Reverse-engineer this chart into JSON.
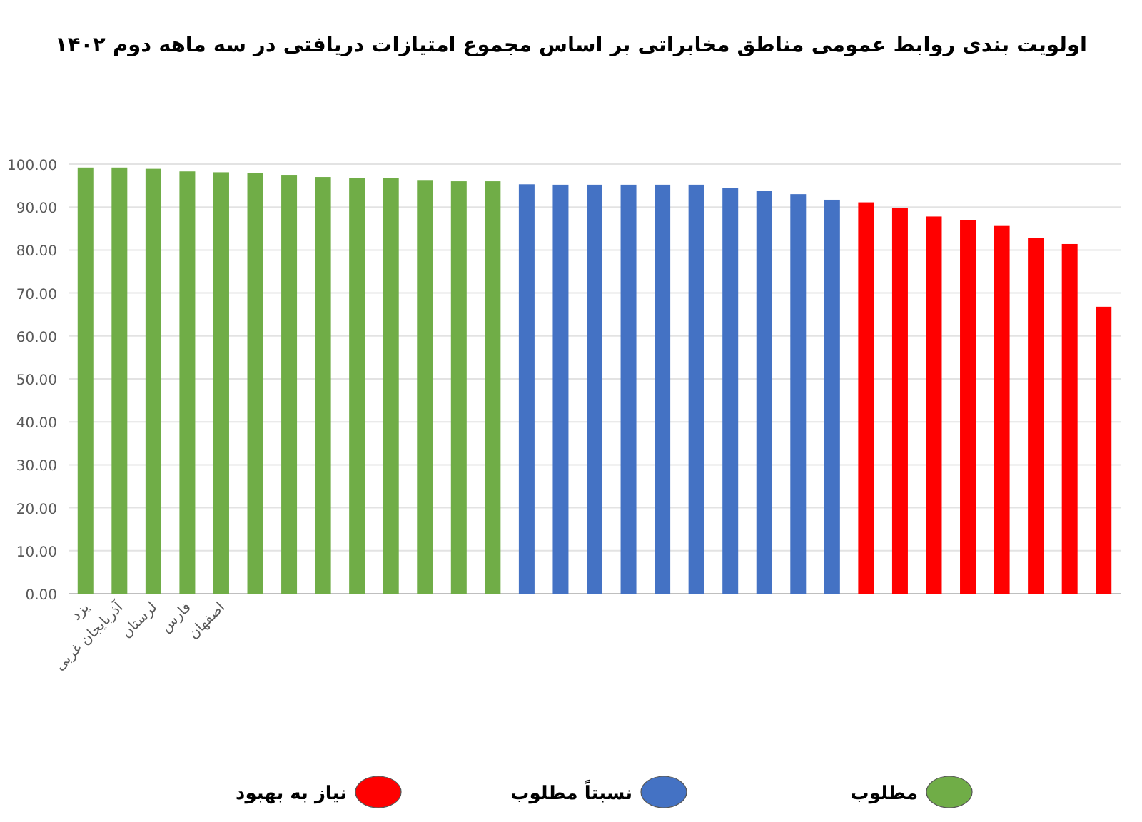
{
  "chart_data": {
    "type": "bar",
    "title": "اولویت بندی روابط عمومی مناطق مخابراتی بر اساس مجموع امتیازات دریافتی در  سه ماهه دوم ۱۴۰۲",
    "categories": [
      "یزد",
      "آذربایجان غربی",
      "لرستان",
      "فارس",
      "اصفهان",
      null,
      null,
      null,
      null,
      null,
      null,
      null,
      null,
      null,
      null,
      null,
      null,
      null,
      null,
      null,
      null,
      null,
      null,
      null,
      null,
      null,
      null,
      null,
      null,
      null,
      null
    ],
    "series": [
      {
        "name": "مطلوب",
        "color": "#70ad47",
        "values": [
          99.2,
          99.2,
          98.9,
          98.3,
          98.1,
          98.0,
          97.5,
          97.0,
          96.8,
          96.7,
          96.3,
          96.0,
          96.0,
          null,
          null,
          null,
          null,
          null,
          null,
          null,
          null,
          null,
          null,
          null,
          null,
          null,
          null,
          null,
          null,
          null,
          null
        ]
      },
      {
        "name": "نسبتاً مطلوب",
        "color": "#4472c4",
        "values": [
          null,
          null,
          null,
          null,
          null,
          null,
          null,
          null,
          null,
          null,
          null,
          null,
          null,
          95.3,
          95.2,
          95.2,
          95.2,
          95.2,
          95.2,
          94.5,
          93.7,
          93.0,
          91.7,
          null,
          null,
          null,
          null,
          null,
          null,
          null,
          null
        ]
      },
      {
        "name": "نیاز به بهبود",
        "color": "#ff0000",
        "values": [
          null,
          null,
          null,
          null,
          null,
          null,
          null,
          null,
          null,
          null,
          null,
          null,
          null,
          null,
          null,
          null,
          null,
          null,
          null,
          null,
          null,
          null,
          null,
          91.1,
          89.7,
          87.8,
          86.9,
          85.6,
          82.8,
          81.4,
          66.8
        ]
      }
    ],
    "ylim": [
      0,
      100
    ],
    "yticks": [
      {
        "value": 0,
        "label": "0.00"
      },
      {
        "value": 10,
        "label": "10.00"
      },
      {
        "value": 20,
        "label": "20.00"
      },
      {
        "value": 30,
        "label": "30.00"
      },
      {
        "value": 40,
        "label": "40.00"
      },
      {
        "value": 50,
        "label": "50.00"
      },
      {
        "value": 60,
        "label": "60.00"
      },
      {
        "value": 70,
        "label": "70.00"
      },
      {
        "value": 80,
        "label": "80.00"
      },
      {
        "value": 90,
        "label": "90.00"
      },
      {
        "value": 100,
        "label": "100.00"
      }
    ],
    "grid": "y",
    "legend": "bottom"
  }
}
